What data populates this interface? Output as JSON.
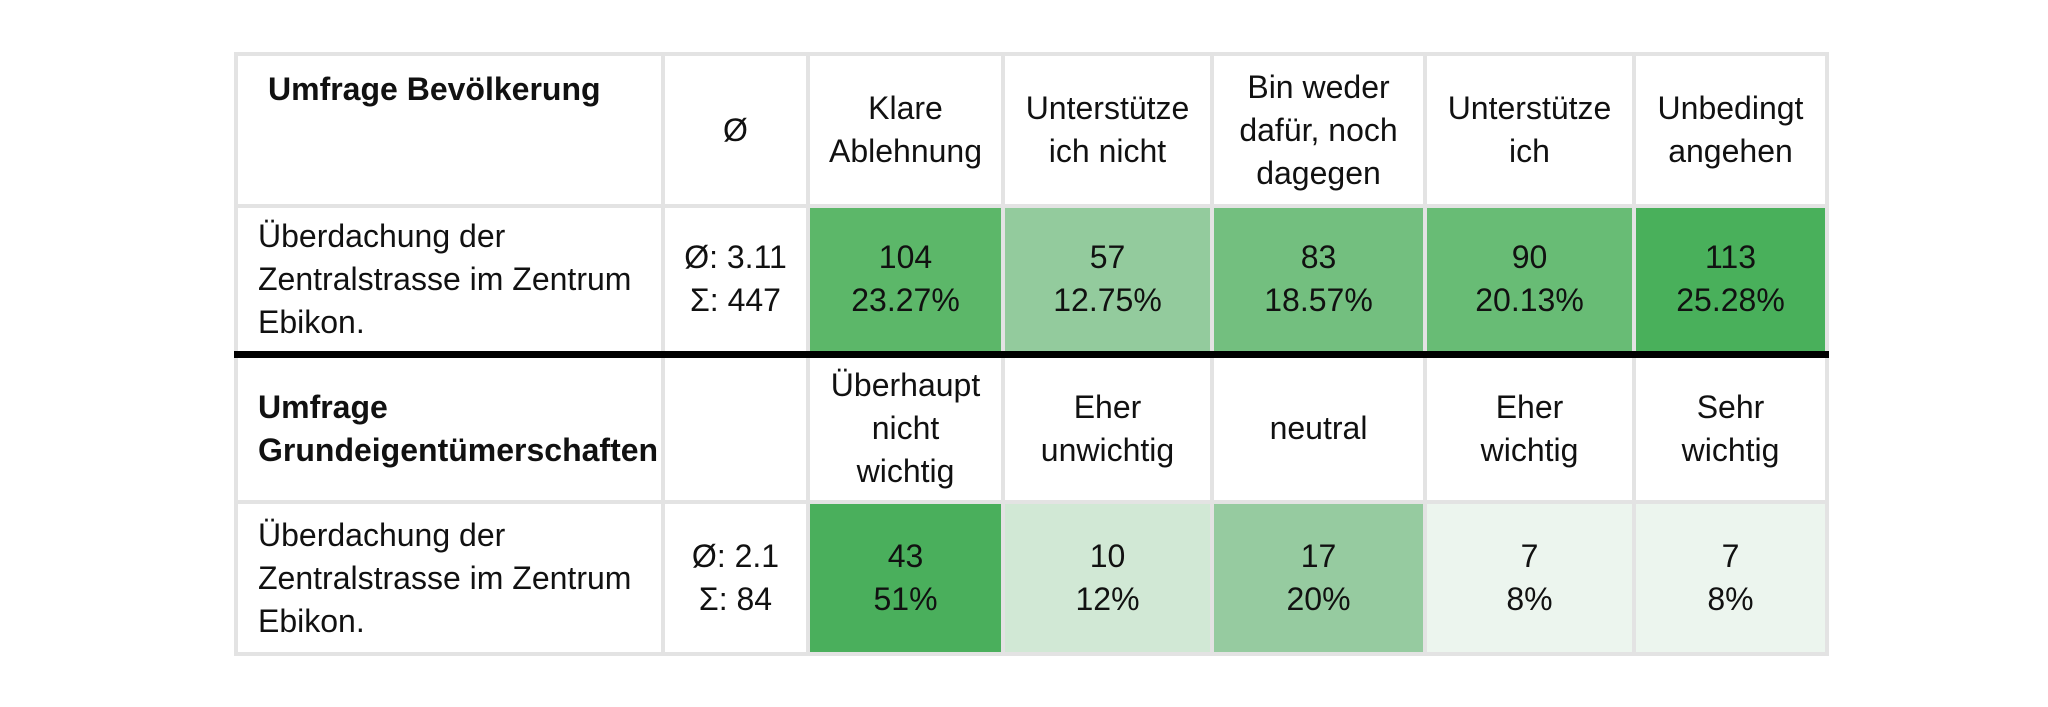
{
  "population_survey": {
    "title": "Umfrage Bevölkerung",
    "avg_header": "Ø",
    "columns": [
      [
        "Klare",
        "Ablehnung"
      ],
      [
        "Unterstütze",
        "ich nicht"
      ],
      [
        "Bin weder",
        "dafür, noch",
        "dagegen"
      ],
      [
        "Unterstütze",
        "ich"
      ],
      [
        "Unbedingt",
        "angehen"
      ]
    ],
    "item": {
      "label": [
        "Überdachung der",
        "Zentralstrasse im Zentrum",
        "Ebikon."
      ],
      "avg": "Ø: 3.11",
      "sum": "Σ: 447",
      "cells": [
        {
          "count": "104",
          "percent": "23.27%",
          "color": "#5cb769"
        },
        {
          "count": "57",
          "percent": "12.75%",
          "color": "#93cb9d"
        },
        {
          "count": "83",
          "percent": "18.57%",
          "color": "#73bf7f"
        },
        {
          "count": "90",
          "percent": "20.13%",
          "color": "#68bc75"
        },
        {
          "count": "113",
          "percent": "25.28%",
          "color": "#49b05b"
        }
      ]
    }
  },
  "owner_survey": {
    "title": [
      "Umfrage",
      "Grundeigentümerschaften"
    ],
    "columns": [
      [
        "Überhaupt",
        "nicht",
        "wichtig"
      ],
      [
        "Eher",
        "unwichtig"
      ],
      [
        "neutral"
      ],
      [
        "Eher",
        "wichtig"
      ],
      [
        "Sehr",
        "wichtig"
      ]
    ],
    "item": {
      "label": [
        "Überdachung der",
        "Zentralstrasse im Zentrum",
        "Ebikon."
      ],
      "avg": "Ø: 2.1",
      "sum": "Σ: 84",
      "cells": [
        {
          "count": "43",
          "percent": "51%",
          "color": "#4aaf5c"
        },
        {
          "count": "10",
          "percent": "12%",
          "color": "#d1e8d5"
        },
        {
          "count": "17",
          "percent": "20%",
          "color": "#96cba0"
        },
        {
          "count": "7",
          "percent": "8%",
          "color": "#ecf5ee"
        },
        {
          "count": "7",
          "percent": "8%",
          "color": "#ecf5ee"
        }
      ]
    }
  }
}
